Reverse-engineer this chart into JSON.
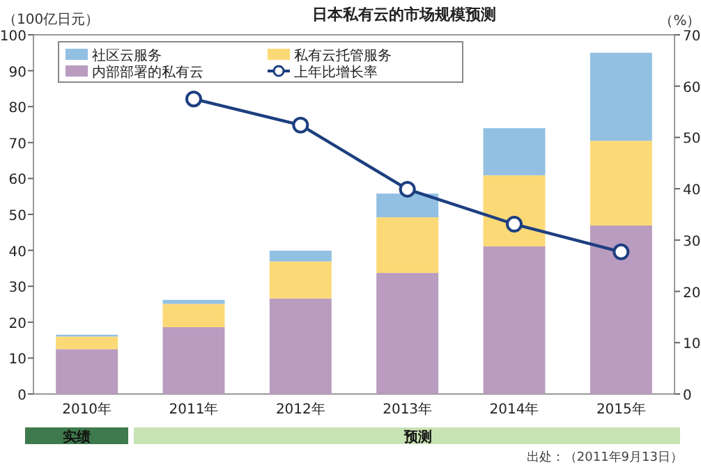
{
  "chart_data": {
    "type": "bar",
    "title": "日本私有云的市场规模预测",
    "ylabel": "（100亿日元）",
    "y2label": "（%）",
    "categories": [
      "2010年",
      "2011年",
      "2012年",
      "2013年",
      "2014年",
      "2015年"
    ],
    "stacked": true,
    "legend": "top",
    "series": [
      {
        "name": "内部部署的私有云",
        "color": "#b99cc0",
        "values": [
          12.5,
          18.6,
          26.6,
          33.7,
          41.1,
          46.9
        ]
      },
      {
        "name": "私有云托管服务",
        "color": "#fcd977",
        "values": [
          3.5,
          6.5,
          10.3,
          15.5,
          19.8,
          23.6
        ]
      },
      {
        "name": "社区云服务",
        "color": "#92c0e2",
        "values": [
          0.5,
          1.1,
          3.0,
          6.6,
          13.1,
          24.5
        ]
      },
      {
        "name": "上年比增长率",
        "type": "line",
        "axis": "y2",
        "marker": "circle",
        "color": "#1d3f80",
        "values": [
          null,
          57.5,
          52.4,
          39.9,
          33.1,
          27.7
        ]
      }
    ],
    "ylim": [
      0,
      100
    ],
    "yticks": [
      0,
      10,
      20,
      30,
      40,
      50,
      60,
      70,
      80,
      90,
      100
    ],
    "y2lim": [
      0,
      70
    ],
    "y2ticks": [
      0,
      10,
      20,
      30,
      40,
      50,
      60,
      70
    ],
    "annotations": [
      "实绩",
      "预测",
      "出处：（2011年9月13日）"
    ]
  }
}
